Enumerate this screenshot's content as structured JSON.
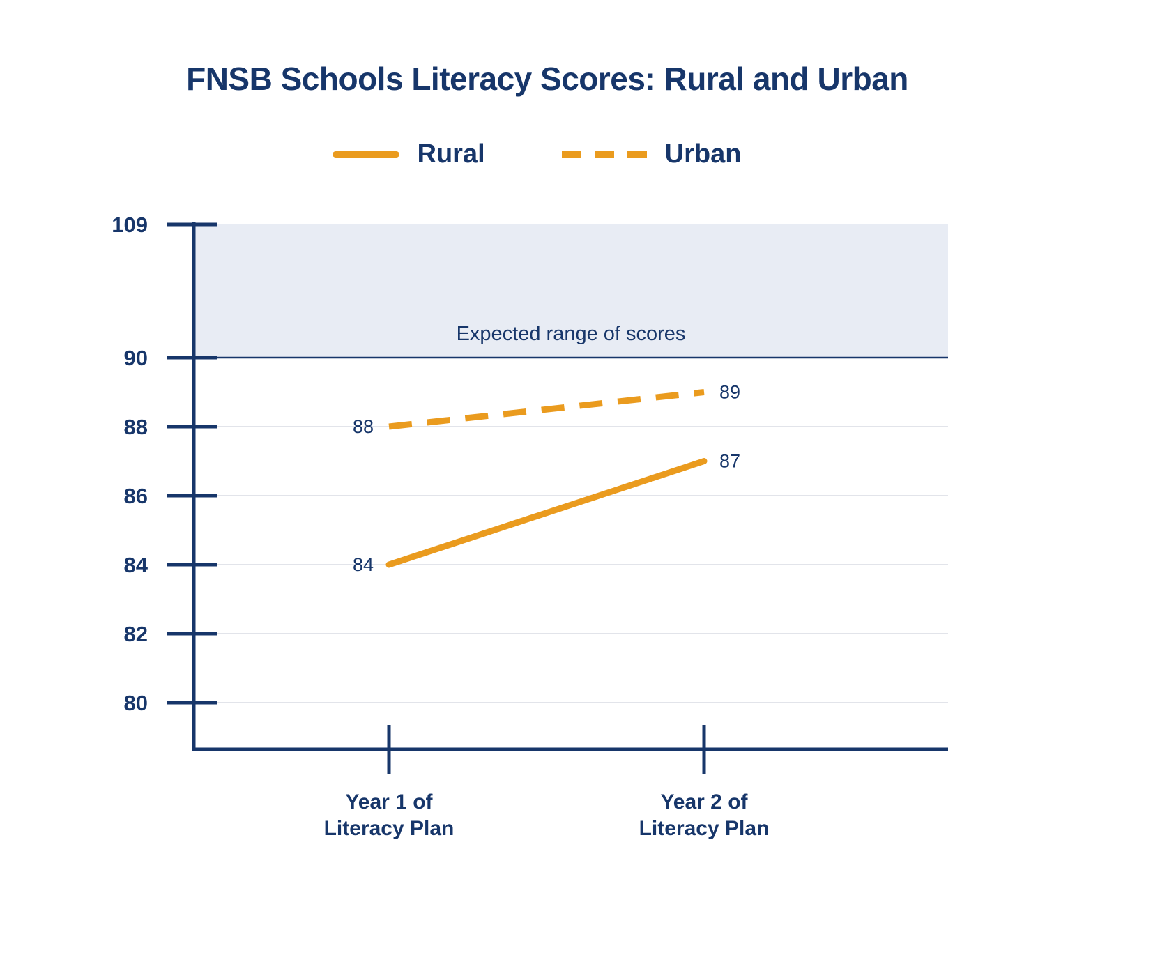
{
  "title": "FNSB Schools Literacy Scores: Rural and Urban",
  "colors": {
    "navy": "#17366a",
    "orange": "#ea9b1e",
    "band_fill": "#e8ecf4",
    "gridline": "#d8dce3"
  },
  "legend": {
    "items": [
      {
        "label": "Rural",
        "style": "solid"
      },
      {
        "label": "Urban",
        "style": "dashed"
      }
    ]
  },
  "chart_data": {
    "type": "line",
    "title": "FNSB Schools Literacy Scores: Rural and Urban",
    "categories": [
      [
        "Year 1 of",
        "Literacy Plan"
      ],
      [
        "Year 2 of",
        "Literacy Plan"
      ]
    ],
    "series": [
      {
        "name": "Rural",
        "style": "solid",
        "values": [
          84,
          87
        ],
        "point_labels": [
          "84",
          "87"
        ]
      },
      {
        "name": "Urban",
        "style": "dashed",
        "values": [
          88,
          89
        ],
        "point_labels": [
          "88",
          "89"
        ]
      }
    ],
    "yticks": [
      109,
      90,
      88,
      86,
      84,
      82,
      80
    ],
    "ylim": [
      78.5,
      109
    ],
    "axis_break_between": [
      90,
      109
    ],
    "band": {
      "from": 90,
      "to": 109,
      "label": "Expected range of scores"
    },
    "grid": true,
    "legend_position": "top"
  }
}
